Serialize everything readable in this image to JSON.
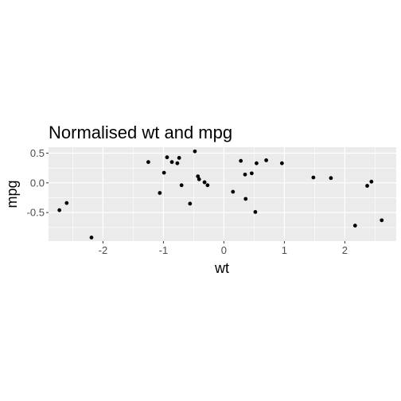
{
  "chart_data": {
    "type": "scatter",
    "title": "Normalised wt and mpg",
    "xlabel": "wt",
    "ylabel": "mpg",
    "xlim": [
      -2.9,
      2.85
    ],
    "ylim": [
      -0.98,
      0.6
    ],
    "x_ticks": [
      -2,
      -1,
      0,
      1,
      2
    ],
    "x_tick_labels": [
      "-2",
      "-1",
      "0",
      "1",
      "2"
    ],
    "y_ticks": [
      -0.5,
      0.0,
      0.5
    ],
    "y_tick_labels": [
      "-0.5",
      "0.0",
      "0.5"
    ],
    "grid": true,
    "panel_background": "#ebebeb",
    "grid_color": "#ffffff",
    "point_color": "#000000",
    "points": [
      {
        "x": -2.72,
        "y": -0.46
      },
      {
        "x": -2.6,
        "y": -0.34
      },
      {
        "x": -2.19,
        "y": -0.92
      },
      {
        "x": -1.25,
        "y": 0.35
      },
      {
        "x": -1.06,
        "y": -0.17
      },
      {
        "x": -0.99,
        "y": 0.17
      },
      {
        "x": -0.94,
        "y": 0.43
      },
      {
        "x": -0.86,
        "y": 0.35
      },
      {
        "x": -0.77,
        "y": 0.33
      },
      {
        "x": -0.74,
        "y": 0.42
      },
      {
        "x": -0.7,
        "y": -0.04
      },
      {
        "x": -0.56,
        "y": -0.35
      },
      {
        "x": -0.48,
        "y": 0.53
      },
      {
        "x": -0.43,
        "y": 0.11
      },
      {
        "x": -0.41,
        "y": 0.06
      },
      {
        "x": -0.32,
        "y": 0.01
      },
      {
        "x": -0.27,
        "y": -0.04
      },
      {
        "x": 0.15,
        "y": -0.15
      },
      {
        "x": 0.28,
        "y": 0.37
      },
      {
        "x": 0.36,
        "y": -0.27
      },
      {
        "x": 0.35,
        "y": 0.14
      },
      {
        "x": 0.46,
        "y": 0.16
      },
      {
        "x": 0.52,
        "y": -0.49
      },
      {
        "x": 0.54,
        "y": 0.33
      },
      {
        "x": 0.7,
        "y": 0.38
      },
      {
        "x": 0.96,
        "y": 0.33
      },
      {
        "x": 1.48,
        "y": 0.09
      },
      {
        "x": 1.77,
        "y": 0.08
      },
      {
        "x": 2.17,
        "y": -0.72
      },
      {
        "x": 2.37,
        "y": -0.05
      },
      {
        "x": 2.44,
        "y": 0.02
      },
      {
        "x": 2.61,
        "y": -0.63
      }
    ]
  }
}
